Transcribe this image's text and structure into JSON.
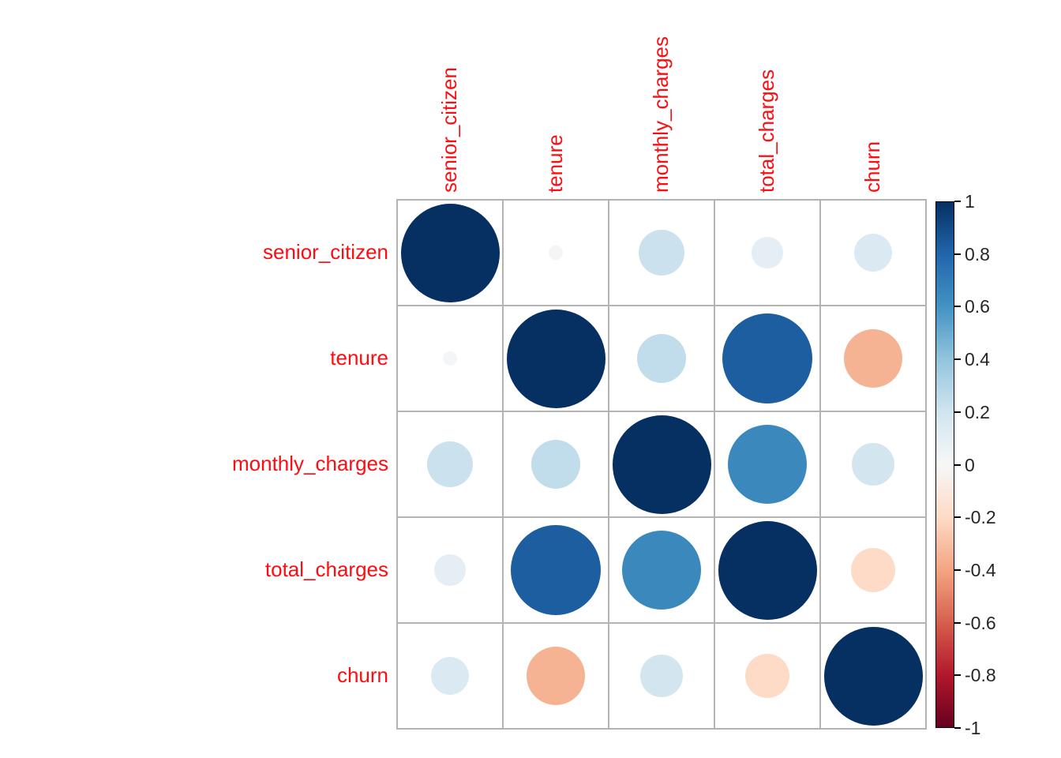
{
  "chart_data": {
    "type": "heatmap",
    "subtype": "correlation-matrix-circles",
    "title": "",
    "variables": [
      "senior_citizen",
      "tenure",
      "monthly_charges",
      "total_charges",
      "churn"
    ],
    "matrix": [
      [
        1.0,
        0.02,
        0.22,
        0.1,
        0.15
      ],
      [
        0.02,
        1.0,
        0.25,
        0.83,
        -0.35
      ],
      [
        0.22,
        0.25,
        1.0,
        0.65,
        0.19
      ],
      [
        0.1,
        0.83,
        0.65,
        1.0,
        -0.2
      ],
      [
        0.15,
        -0.35,
        0.19,
        -0.2,
        1.0
      ]
    ],
    "encoding": "circle area proportional to |correlation|, color from RdBu diverging scale",
    "value_range": [
      -1,
      1
    ],
    "legend_position": "right",
    "grid_on": true,
    "colorbar": {
      "tick_labels": [
        "1",
        "0.8",
        "0.6",
        "0.4",
        "0.2",
        "0",
        "-0.2",
        "-0.4",
        "-0.6",
        "-0.8",
        "-1"
      ],
      "tick_values": [
        1,
        0.8,
        0.6,
        0.4,
        0.2,
        0,
        -0.2,
        -0.4,
        -0.6,
        -0.8,
        -1
      ]
    },
    "colors": {
      "label_red": "#fb0d12",
      "grid_line": "#b3b3b3",
      "tick_text": "#262626",
      "colorbar_border": "#000000",
      "rdbu_anchors": [
        "#053061",
        "#2166AC",
        "#4393C3",
        "#92C5DE",
        "#D1E5F0",
        "#F7F7F7",
        "#FDDBC7",
        "#F4A582",
        "#D6604D",
        "#B2182B",
        "#67001F"
      ]
    }
  }
}
